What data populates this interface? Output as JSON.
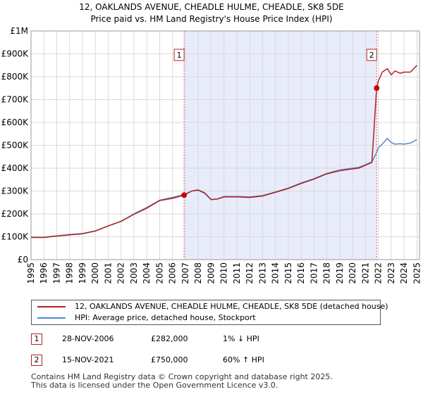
{
  "chart_data": {
    "type": "line",
    "title": "12, OAKLANDS AVENUE, CHEADLE HULME, CHEADLE, SK8 5DE",
    "subtitle": "Price paid vs. HM Land Registry's House Price Index (HPI)",
    "xlim": [
      1995,
      2025.2
    ],
    "ylim": [
      0,
      1000000
    ],
    "x_ticks": [
      1995,
      1996,
      1997,
      1998,
      1999,
      2000,
      2001,
      2002,
      2003,
      2004,
      2005,
      2006,
      2007,
      2008,
      2009,
      2010,
      2011,
      2012,
      2013,
      2014,
      2015,
      2016,
      2017,
      2018,
      2019,
      2020,
      2021,
      2022,
      2023,
      2024,
      2025
    ],
    "x_tick_labels": [
      "1995",
      "1996",
      "1997",
      "1998",
      "1999",
      "2000",
      "2001",
      "2002",
      "2003",
      "2004",
      "2005",
      "2006",
      "2007",
      "2008",
      "2009",
      "2010",
      "2011",
      "2012",
      "2013",
      "2014",
      "2015",
      "2016",
      "2017",
      "2018",
      "2019",
      "2020",
      "2021",
      "2022",
      "2023",
      "2024",
      "2025"
    ],
    "y_ticks": [
      0,
      100000,
      200000,
      300000,
      400000,
      500000,
      600000,
      700000,
      800000,
      900000,
      1000000
    ],
    "y_tick_labels": [
      "£0",
      "£100K",
      "£200K",
      "£300K",
      "£400K",
      "£500K",
      "£600K",
      "£700K",
      "£800K",
      "£900K",
      "£1M"
    ],
    "grid": true,
    "shaded_region": [
      2006.9,
      2021.87
    ],
    "series": [
      {
        "name": "12, OAKLANDS AVENUE, CHEADLE HULME, CHEADLE, SK8 5DE (detached house)",
        "color": "#b22222",
        "x": [
          1995,
          1996,
          1997,
          1998,
          1999,
          2000,
          2001,
          2002,
          2003,
          2004,
          2005,
          2006,
          2006.9,
          2007.5,
          2008,
          2008.5,
          2009,
          2009.5,
          2010,
          2011,
          2012,
          2013,
          2014,
          2015,
          2016,
          2017,
          2018,
          2019,
          2020,
          2020.5,
          2021,
          2021.5,
          2021.87,
          2022,
          2022.3,
          2022.7,
          2023,
          2023.3,
          2023.7,
          2024,
          2024.5,
          2025
        ],
        "y": [
          97000,
          97000,
          103000,
          108000,
          113000,
          125000,
          147000,
          167000,
          198000,
          225000,
          258000,
          268000,
          282000,
          300000,
          305000,
          292000,
          263000,
          265000,
          274000,
          274000,
          272000,
          278000,
          294000,
          311000,
          333000,
          352000,
          375000,
          389000,
          397000,
          400000,
          413000,
          425000,
          750000,
          780000,
          820000,
          835000,
          808000,
          825000,
          815000,
          820000,
          820000,
          850000
        ]
      },
      {
        "name": "HPI: Average price, detached house, Stockport",
        "color": "#5b86c9",
        "x": [
          1995,
          1996,
          1997,
          1998,
          1999,
          2000,
          2001,
          2002,
          2003,
          2004,
          2005,
          2006,
          2006.9,
          2007.5,
          2008,
          2008.5,
          2009,
          2009.5,
          2010,
          2011,
          2012,
          2013,
          2014,
          2015,
          2016,
          2017,
          2018,
          2019,
          2020,
          2020.5,
          2021,
          2021.5,
          2021.87,
          2022,
          2022.3,
          2022.7,
          2023,
          2023.3,
          2023.7,
          2024,
          2024.5,
          2025
        ],
        "y": [
          98000,
          98000,
          104000,
          110000,
          114000,
          126000,
          148000,
          168000,
          200000,
          228000,
          260000,
          272000,
          285000,
          300000,
          303000,
          290000,
          262000,
          266000,
          276000,
          276000,
          274000,
          280000,
          296000,
          313000,
          335000,
          354000,
          377000,
          392000,
          400000,
          404000,
          415000,
          428000,
          468000,
          488000,
          505000,
          530000,
          512000,
          505000,
          507000,
          505000,
          510000,
          525000
        ]
      }
    ],
    "markers": [
      {
        "label": "1",
        "x": 2006.9,
        "y": 282000
      },
      {
        "label": "2",
        "x": 2021.87,
        "y": 750000
      }
    ]
  },
  "legend": {
    "items": [
      {
        "label": "12, OAKLANDS AVENUE, CHEADLE HULME, CHEADLE, SK8 5DE (detached house)",
        "color": "#b22222"
      },
      {
        "label": "HPI: Average price, detached house, Stockport",
        "color": "#5b86c9"
      }
    ]
  },
  "transactions": [
    {
      "num": "1",
      "date": "28-NOV-2006",
      "price": "£282,000",
      "hpi": "1% ↓ HPI"
    },
    {
      "num": "2",
      "date": "15-NOV-2021",
      "price": "£750,000",
      "hpi": "60% ↑ HPI"
    }
  ],
  "footer": {
    "line1": "Contains HM Land Registry data © Crown copyright and database right 2025.",
    "line2": "This data is licensed under the Open Government Licence v3.0."
  }
}
